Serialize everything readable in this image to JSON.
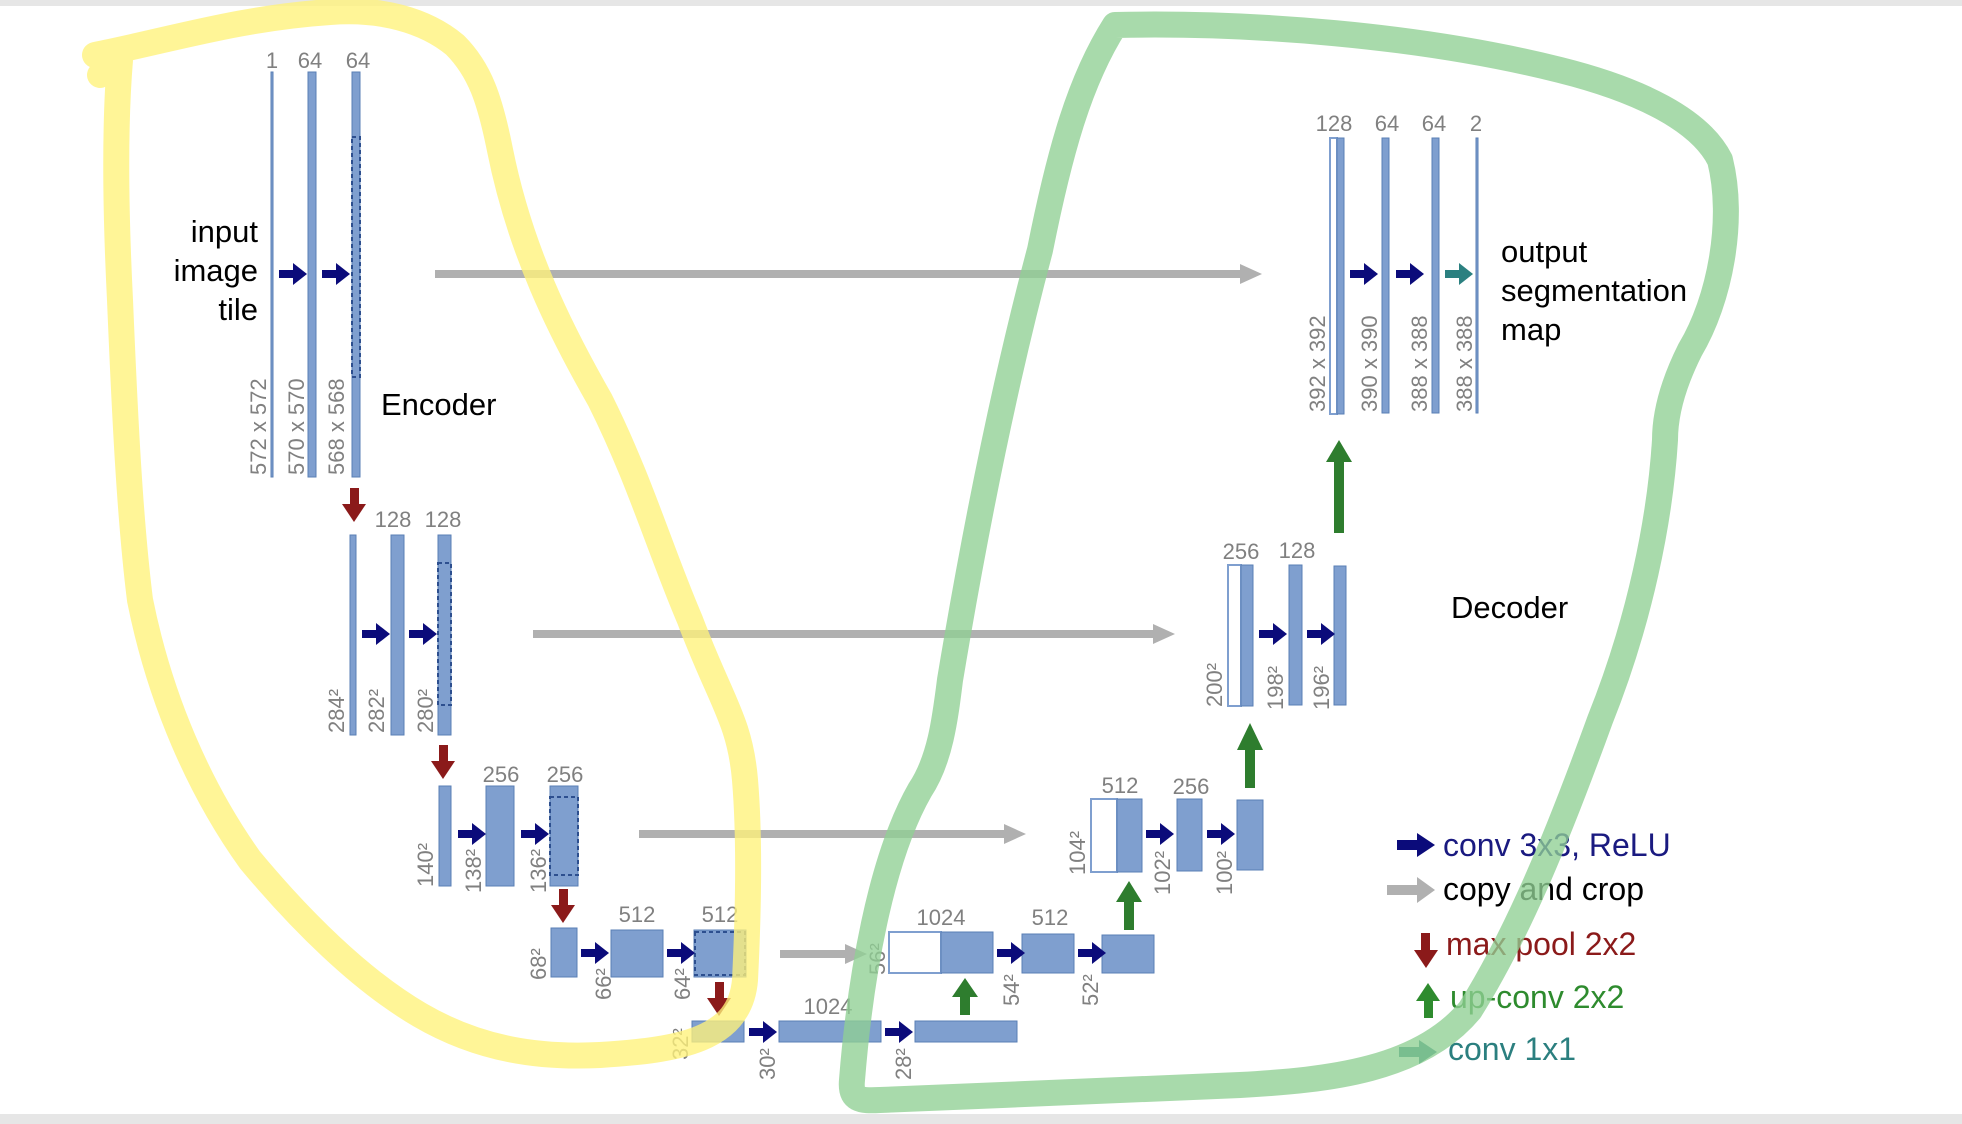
{
  "diagram": {
    "input_label": [
      "input",
      "image",
      "tile"
    ],
    "output_label": [
      "output",
      "segmentation",
      "map"
    ],
    "encoder_label": "Encoder",
    "decoder_label": "Decoder",
    "channel_labels": {
      "enc1": [
        "1",
        "64",
        "64"
      ],
      "enc2": [
        "128",
        "128"
      ],
      "enc3": [
        "256",
        "256"
      ],
      "enc4": [
        "512",
        "512"
      ],
      "bottleneck": [
        "1024"
      ],
      "dec4": [
        "1024",
        "512"
      ],
      "dec3": [
        "512",
        "256"
      ],
      "dec2": [
        "256",
        "128"
      ],
      "dec1": [
        "128",
        "64",
        "64",
        "2"
      ]
    },
    "size_labels": {
      "enc1": [
        "572 x 572",
        "570 x 570",
        "568 x 568"
      ],
      "enc2": [
        "284²",
        "282²",
        "280²"
      ],
      "enc3": [
        "140²",
        "138²",
        "136²"
      ],
      "enc4": [
        "68²",
        "66²",
        "64²"
      ],
      "bottleneck": [
        "32²",
        "30²",
        "28²"
      ],
      "dec4": [
        "56²",
        "54²",
        "52²"
      ],
      "dec3": [
        "104²",
        "102²",
        "100²"
      ],
      "dec2": [
        "200²",
        "198²",
        "196²"
      ],
      "dec1": [
        "392 x 392",
        "390 x 390",
        "388 x 388",
        "388 x 388"
      ]
    },
    "legend": [
      {
        "label": "conv 3x3, ReLU",
        "color": "#1a1a80",
        "icon": "arrow-right-icon"
      },
      {
        "label": "copy and crop",
        "color": "#000000",
        "arrow_color": "#b0b0b0",
        "icon": "arrow-right-icon"
      },
      {
        "label": "max pool 2x2",
        "color": "#8b1a1a",
        "icon": "arrow-down-icon"
      },
      {
        "label": "up-conv 2x2",
        "color": "#2e8b2e",
        "icon": "arrow-up-icon"
      },
      {
        "label": "conv 1x1",
        "color": "#2b7f7f",
        "icon": "arrow-right-icon"
      }
    ],
    "colors": {
      "feature_map": "#7f9fcf",
      "conv_arrow": "#0b0b7a",
      "copy_arrow": "#b0b0b0",
      "pool_arrow": "#8b1a1a",
      "upconv_arrow": "#2e7d2e",
      "conv1x1_arrow": "#2b8080",
      "encoder_highlight": "#fff27a",
      "decoder_highlight": "#8fcf94"
    }
  }
}
